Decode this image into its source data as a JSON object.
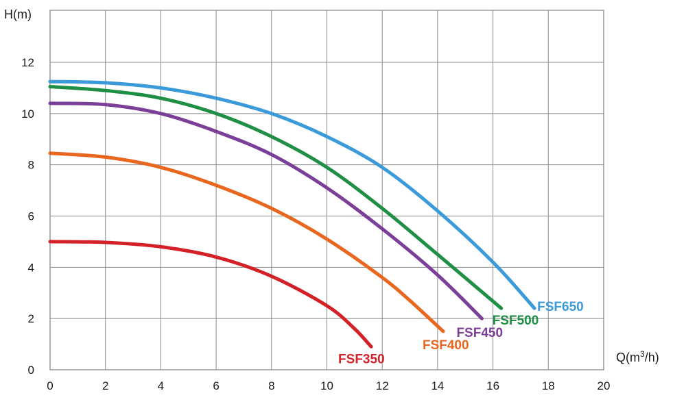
{
  "chart_data": {
    "type": "line",
    "ylabel": "H(m)",
    "xlabel_main": "Q(m",
    "xlabel_sup": "3",
    "xlabel_tail": "/h)",
    "xlim": [
      0,
      20
    ],
    "ylim": [
      0,
      13
    ],
    "x_ticks": [
      0,
      2,
      4,
      6,
      8,
      10,
      12,
      14,
      16,
      18,
      20
    ],
    "y_ticks": [
      0,
      2,
      4,
      6,
      8,
      10,
      12
    ],
    "grid": true,
    "series": [
      {
        "name": "FSF350",
        "color": "#d42127",
        "points": [
          [
            0,
            5.0
          ],
          [
            2,
            4.97
          ],
          [
            4,
            4.8
          ],
          [
            6,
            4.4
          ],
          [
            8,
            3.65
          ],
          [
            10,
            2.5
          ],
          [
            11,
            1.6
          ],
          [
            11.6,
            0.9
          ]
        ]
      },
      {
        "name": "FSF400",
        "color": "#e8661e",
        "points": [
          [
            0,
            8.45
          ],
          [
            2,
            8.3
          ],
          [
            4,
            7.9
          ],
          [
            6,
            7.2
          ],
          [
            8,
            6.3
          ],
          [
            10,
            5.1
          ],
          [
            12,
            3.6
          ],
          [
            13,
            2.7
          ],
          [
            14.2,
            1.5
          ]
        ]
      },
      {
        "name": "FSF450",
        "color": "#7b3f98",
        "points": [
          [
            0,
            10.4
          ],
          [
            2,
            10.35
          ],
          [
            4,
            10.0
          ],
          [
            6,
            9.3
          ],
          [
            8,
            8.4
          ],
          [
            10,
            7.1
          ],
          [
            12,
            5.5
          ],
          [
            14,
            3.7
          ],
          [
            15.6,
            2.0
          ]
        ]
      },
      {
        "name": "FSF500",
        "color": "#1f8f45",
        "points": [
          [
            0,
            11.05
          ],
          [
            2,
            10.9
          ],
          [
            4,
            10.6
          ],
          [
            6,
            10.0
          ],
          [
            8,
            9.1
          ],
          [
            10,
            7.9
          ],
          [
            12,
            6.3
          ],
          [
            14,
            4.5
          ],
          [
            16.3,
            2.4
          ]
        ]
      },
      {
        "name": "FSF650",
        "color": "#3b9ad9",
        "points": [
          [
            0,
            11.25
          ],
          [
            2,
            11.2
          ],
          [
            4,
            11.0
          ],
          [
            6,
            10.6
          ],
          [
            8,
            10.0
          ],
          [
            10,
            9.1
          ],
          [
            12,
            7.9
          ],
          [
            14,
            6.2
          ],
          [
            16,
            4.2
          ],
          [
            17.5,
            2.4
          ]
        ]
      }
    ]
  }
}
